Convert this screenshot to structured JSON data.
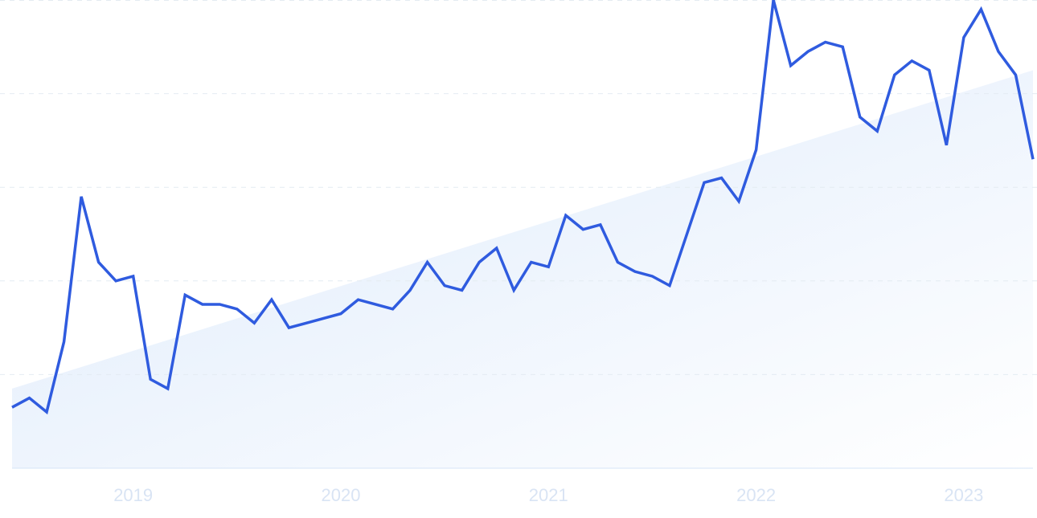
{
  "chart_data": {
    "type": "line",
    "categories": [
      null,
      null,
      null,
      null,
      null,
      null,
      null,
      "2019",
      null,
      null,
      null,
      null,
      null,
      null,
      null,
      null,
      null,
      null,
      null,
      "2020",
      null,
      null,
      null,
      null,
      null,
      null,
      null,
      null,
      null,
      null,
      null,
      "2021",
      null,
      null,
      null,
      null,
      null,
      null,
      null,
      null,
      null,
      null,
      null,
      "2022",
      null,
      null,
      null,
      null,
      null,
      null,
      null,
      null,
      null,
      null,
      null,
      "2023",
      null,
      null,
      null,
      null
    ],
    "series": [
      {
        "color": "#2f5bdf",
        "values": [
          13,
          15,
          12,
          27,
          58,
          44,
          40,
          41,
          19,
          17,
          37,
          35,
          35,
          34,
          31,
          36,
          30,
          31,
          32,
          33,
          36,
          35,
          34,
          38,
          44,
          39,
          38,
          44,
          47,
          38,
          44,
          43,
          54,
          51,
          52,
          44,
          42,
          41,
          39,
          50,
          61,
          62,
          57,
          68,
          100,
          86,
          89,
          91,
          90,
          75,
          72,
          84,
          87,
          85,
          69,
          92,
          98,
          89,
          84,
          66
        ]
      }
    ],
    "trend": {
      "color": "#e2eefc",
      "values": [
        17,
        85
      ]
    },
    "ylim": [
      0,
      100
    ],
    "yticks": [
      0,
      20,
      40,
      60,
      80,
      100
    ],
    "grid": true
  }
}
